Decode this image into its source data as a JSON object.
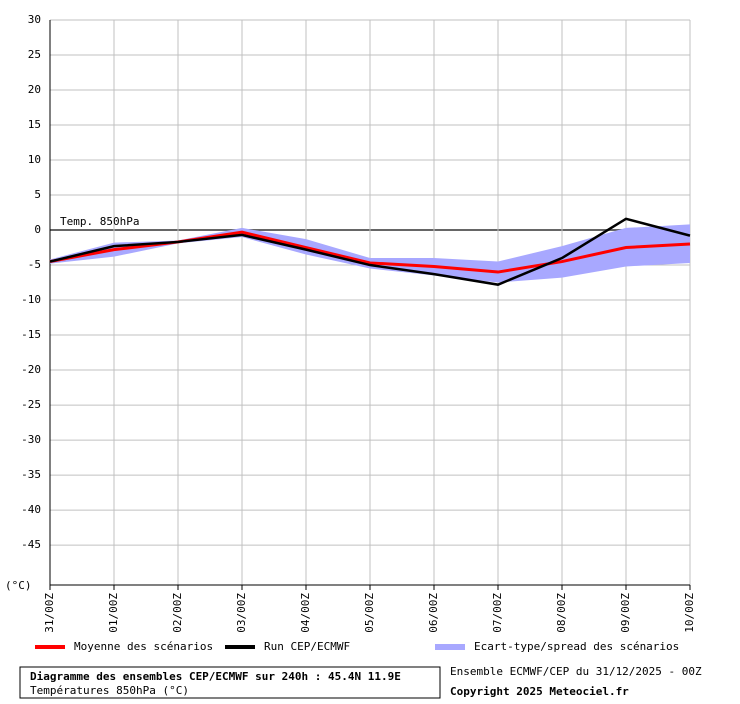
{
  "chart_data": {
    "type": "line",
    "annotation": "Temp. 850hPa",
    "y_unit": "(°C)",
    "categories": [
      "31/00Z",
      "01/00Z",
      "02/00Z",
      "03/00Z",
      "04/00Z",
      "05/00Z",
      "06/00Z",
      "07/00Z",
      "08/00Z",
      "09/00Z",
      "10/00Z"
    ],
    "series": [
      {
        "name": "Moyenne des scénarios",
        "color": "#ff0000",
        "values": [
          -4.5,
          -2.8,
          -1.7,
          -0.3,
          -2.5,
          -4.7,
          -5.2,
          -6.0,
          -4.5,
          -2.5,
          -2.0
        ]
      },
      {
        "name": "Run CEP/ECMWF",
        "color": "#000000",
        "values": [
          -4.5,
          -2.3,
          -1.7,
          -0.7,
          -2.8,
          -5.0,
          -6.3,
          -7.8,
          -4.0,
          1.6,
          -0.8
        ]
      }
    ],
    "spread": {
      "name": "Ecart-type/spread des scénarios",
      "color": "#a8a8ff",
      "high": [
        -4.2,
        -1.8,
        -1.5,
        0.3,
        -1.3,
        -4.0,
        -4.0,
        -4.5,
        -2.3,
        0.3,
        0.8
      ],
      "low": [
        -4.8,
        -3.8,
        -1.9,
        -1.0,
        -3.5,
        -5.5,
        -6.5,
        -7.5,
        -6.8,
        -5.2,
        -4.7
      ]
    },
    "ylim": [
      -50.7,
      30
    ],
    "yticks": [
      30,
      25,
      20,
      15,
      10,
      5,
      0,
      -5,
      -10,
      -15,
      -20,
      -25,
      -30,
      -35,
      -40,
      -45
    ],
    "grid": true,
    "footer": {
      "title": "Diagramme des ensembles CEP/ECMWF sur 240h : 45.4N 11.9E",
      "subtitle": "Températures 850hPa (°C)",
      "run": "Ensemble ECMWF/CEP du 31/12/2025 - 00Z",
      "copyright": "Copyright 2025 Meteociel.fr"
    }
  }
}
